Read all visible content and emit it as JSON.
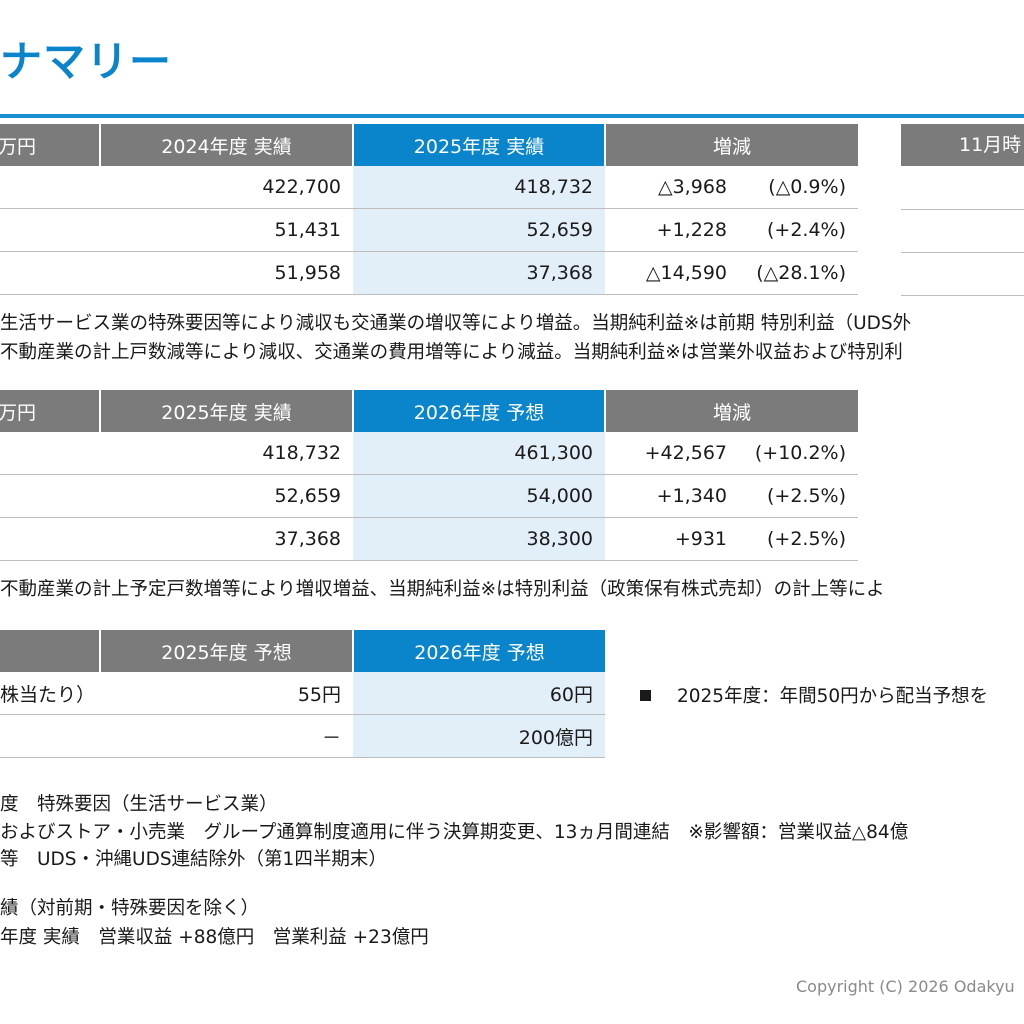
{
  "page": {
    "title": "ナマリー",
    "copyright": "Copyright (C) 2026 Odakyu"
  },
  "table1": {
    "headers": [
      "万円",
      "2024年度 実績",
      "2025年度 実績",
      "増減"
    ],
    "rows": [
      {
        "label": "",
        "prev": "422,700",
        "curr": "418,732",
        "chg": "△3,968",
        "pct": "(△0.9%)"
      },
      {
        "label": "",
        "prev": "51,431",
        "curr": "52,659",
        "chg": "+1,228",
        "pct": "(+2.4%)"
      },
      {
        "label": "",
        "prev": "51,958",
        "curr": "37,368",
        "chg": "△14,590",
        "pct": "(△28.1%)"
      }
    ],
    "side_header": "11月時"
  },
  "notes1": [
    "生活サービス業の特殊要因等により減収も交通業の増収等により増益。当期純利益※は前期 特別利益（UDS外",
    "不動産業の計上戸数減等により減収、交通業の費用増等により減益。当期純利益※は営業外収益および特別利"
  ],
  "table2": {
    "headers": [
      "万円",
      "2025年度 実績",
      "2026年度 予想",
      "増減"
    ],
    "rows": [
      {
        "label": "",
        "prev": "418,732",
        "curr": "461,300",
        "chg": "+42,567",
        "pct": "(+10.2%)"
      },
      {
        "label": "",
        "prev": "52,659",
        "curr": "54,000",
        "chg": "+1,340",
        "pct": "(+2.5%)"
      },
      {
        "label": "",
        "prev": "37,368",
        "curr": "38,300",
        "chg": "+931",
        "pct": "(+2.5%)"
      }
    ]
  },
  "notes2": [
    "不動産業の計上予定戸数増等により増収増益、当期純利益※は特別利益（政策保有株式売却）の計上等によ"
  ],
  "table3": {
    "headers": [
      "",
      "2025年度 予想",
      "2026年度 予想"
    ],
    "rows": [
      {
        "label": "株当たり）",
        "prev": "55円",
        "curr": "60円"
      },
      {
        "label": "",
        "prev": "－",
        "curr": "200億円"
      }
    ]
  },
  "bullet": {
    "text": "2025年度：年間50円から配当予想を"
  },
  "footnotes": [
    "度　特殊要因（生活サービス業）",
    "およびストア・小売業　グループ通算制度適用に伴う決算期変更、13ヵ月間連結　※影響額：営業収益△84億",
    "等　UDS・沖縄UDS連結除外（第1四半期末）",
    "績（対前期・特殊要因を除く）",
    "年度 実績　営業収益 +88億円　営業利益 +23億円"
  ]
}
